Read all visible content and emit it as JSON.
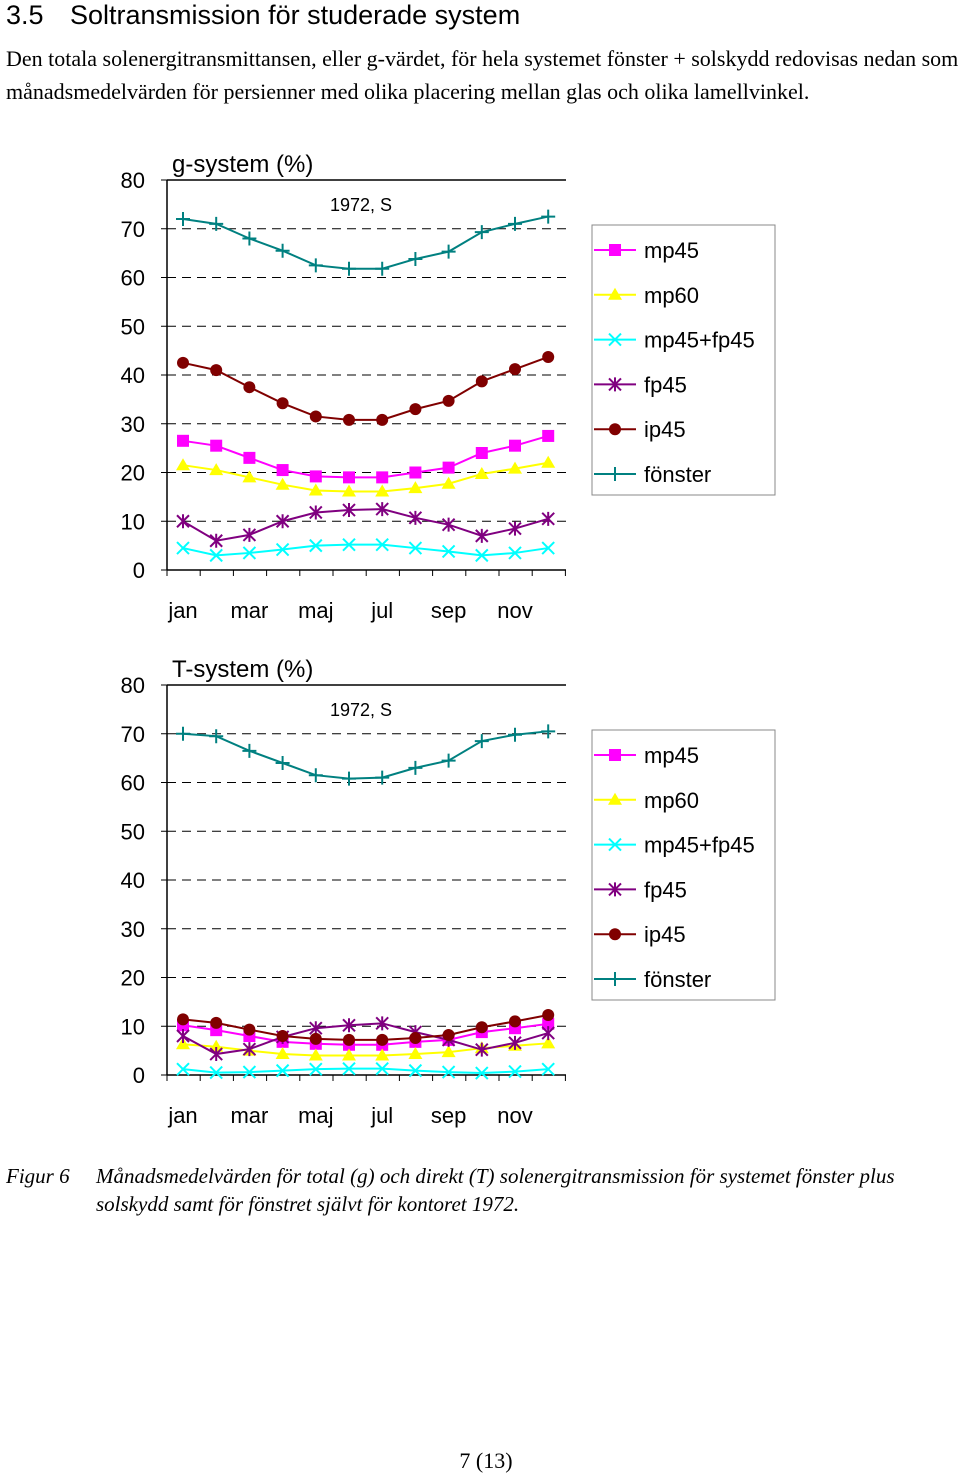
{
  "section": {
    "number": "3.5",
    "title": "Soltransmission för studerade system"
  },
  "intro": "Den totala solenergitransmittansen, eller g-värdet, för hela systemet fönster + solskydd redovisas nedan som månadsmedelvärden för persienner med olika placering mellan glas och olika lamellvinkel.",
  "charts": [
    {
      "title": "g-system (%)",
      "annotation": "1972, S"
    },
    {
      "title": "T-system (%)",
      "annotation": "1972, S"
    }
  ],
  "chart_data": [
    {
      "type": "line",
      "title": "g-system (%)",
      "annotation": "1972, S",
      "x": [
        "jan",
        "feb",
        "mar",
        "apr",
        "maj",
        "jun",
        "jul",
        "aug",
        "sep",
        "okt",
        "nov",
        "dec"
      ],
      "x_tick_labels": [
        "jan",
        "mar",
        "maj",
        "jul",
        "sep",
        "nov"
      ],
      "ylim": [
        0,
        80
      ],
      "yticks": [
        "0",
        "10",
        "20",
        "30",
        "40",
        "50",
        "60",
        "70",
        "80"
      ],
      "grid": true,
      "legend_position": "right",
      "series": [
        {
          "name": "mp45",
          "color": "#ff00ff",
          "marker": "square",
          "values": [
            26.5,
            25.5,
            23,
            20.5,
            19.2,
            19,
            19,
            20,
            21,
            24,
            25.5,
            27.5
          ]
        },
        {
          "name": "mp60",
          "color": "#ffff00",
          "marker": "triangle",
          "values": [
            21.5,
            20.5,
            19,
            17.5,
            16.3,
            16.1,
            16.1,
            16.8,
            17.7,
            19.7,
            20.8,
            22
          ]
        },
        {
          "name": "mp45+fp45",
          "color": "#00ffff",
          "marker": "x",
          "values": [
            4.5,
            3,
            3.5,
            4.2,
            5,
            5.2,
            5.2,
            4.5,
            3.8,
            3,
            3.5,
            4.5
          ]
        },
        {
          "name": "fp45",
          "color": "#800080",
          "marker": "star",
          "values": [
            10,
            6,
            7.2,
            10,
            11.8,
            12.3,
            12.5,
            10.7,
            9.3,
            7,
            8.5,
            10.5
          ]
        },
        {
          "name": "ip45",
          "color": "#800000",
          "marker": "circle",
          "values": [
            42.5,
            41,
            37.5,
            34.2,
            31.5,
            30.8,
            30.8,
            33,
            34.7,
            38.7,
            41.2,
            43.7
          ]
        },
        {
          "name": "fönster",
          "color": "#008080",
          "marker": "plus",
          "values": [
            72,
            71,
            68,
            65.5,
            62.5,
            61.8,
            61.8,
            63.8,
            65.3,
            69.3,
            71,
            72.5
          ]
        }
      ]
    },
    {
      "type": "line",
      "title": "T-system (%)",
      "annotation": "1972, S",
      "x": [
        "jan",
        "feb",
        "mar",
        "apr",
        "maj",
        "jun",
        "jul",
        "aug",
        "sep",
        "okt",
        "nov",
        "dec"
      ],
      "x_tick_labels": [
        "jan",
        "mar",
        "maj",
        "jul",
        "sep",
        "nov"
      ],
      "ylim": [
        0,
        80
      ],
      "yticks": [
        "0",
        "10",
        "20",
        "30",
        "40",
        "50",
        "60",
        "70",
        "80"
      ],
      "grid": true,
      "legend_position": "right",
      "series": [
        {
          "name": "mp45",
          "color": "#ff00ff",
          "marker": "square",
          "values": [
            10.2,
            9.2,
            8,
            6.8,
            6.4,
            6.2,
            6.2,
            6.8,
            7.2,
            8.8,
            9.6,
            10.5
          ]
        },
        {
          "name": "mp60",
          "color": "#ffff00",
          "marker": "triangle",
          "values": [
            6.3,
            5.8,
            5,
            4.3,
            4,
            4,
            4,
            4.3,
            4.7,
            5.5,
            6,
            6.5
          ]
        },
        {
          "name": "mp45+fp45",
          "color": "#00ffff",
          "marker": "x",
          "values": [
            1.2,
            0.5,
            0.6,
            0.9,
            1.2,
            1.3,
            1.3,
            0.9,
            0.6,
            0.4,
            0.7,
            1.2
          ]
        },
        {
          "name": "fp45",
          "color": "#800080",
          "marker": "star",
          "values": [
            8,
            4.3,
            5.3,
            7.8,
            9.6,
            10.2,
            10.6,
            8.8,
            7.2,
            5.2,
            6.6,
            8.6
          ]
        },
        {
          "name": "ip45",
          "color": "#800000",
          "marker": "circle",
          "values": [
            11.4,
            10.7,
            9.3,
            8,
            7.4,
            7.2,
            7.2,
            7.6,
            8.2,
            9.8,
            11,
            12.3
          ]
        },
        {
          "name": "fönster",
          "color": "#008080",
          "marker": "plus",
          "values": [
            70,
            69.5,
            66.5,
            64,
            61.5,
            60.8,
            61,
            63,
            64.5,
            68.5,
            69.8,
            70.5
          ]
        }
      ]
    }
  ],
  "figure": {
    "label": "Figur 6",
    "caption": "Månadsmedelvärden för total (g) och direkt (T) solenergitransmission för systemet fönster plus solskydd samt för fönstret självt för kontoret 1972."
  },
  "page_number": "7 (13)"
}
